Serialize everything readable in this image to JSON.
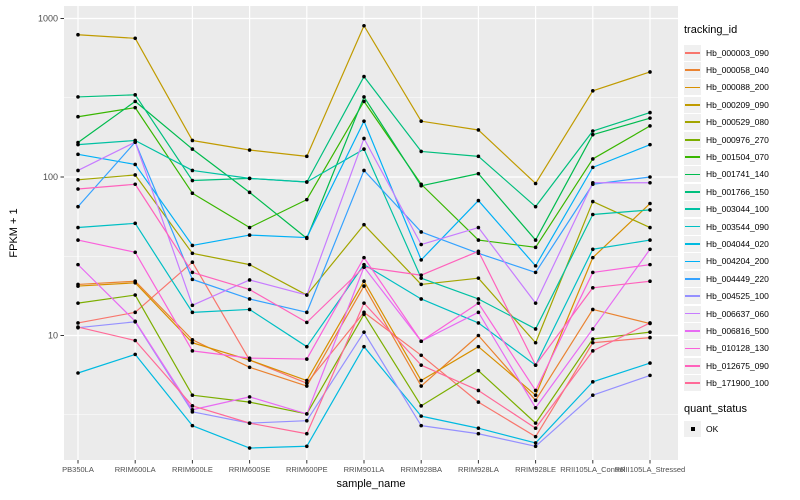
{
  "panel": {
    "bg": "#EBEBEB",
    "grid_color": "#FFFFFF",
    "tick_color": "#333333",
    "axis_text_color": "#4D4D4D",
    "point_color": "#000000"
  },
  "legend": {
    "color_title": "tracking_id",
    "shape_title": "quant_status",
    "shape_items": [
      {
        "label": "OK",
        "marker": "black-square"
      }
    ]
  },
  "chart_data": {
    "type": "line",
    "title": "",
    "xlabel": "sample_name",
    "ylabel": "FPKM + 1",
    "y_scale": "log10",
    "y_ticks": [
      10,
      100,
      1000
    ],
    "y_minor": [
      3.162,
      31.62,
      316.2
    ],
    "ylim": [
      1.6,
      1150
    ],
    "grid": true,
    "legend_position": "right",
    "x_categories": [
      "PB350LA",
      "RRIM600LA",
      "RRIM600LE",
      "RRIM600SE",
      "RRIM600PE",
      "RRIM901LA",
      "RRIM928BA",
      "RRIM928LA",
      "RRIM928LE",
      "RRII105LA_Control",
      "RRII105LA_Stressed"
    ],
    "series": [
      {
        "name": "Hb_000003_090",
        "color": "#F8766D",
        "values": [
          12,
          14,
          29,
          7,
          5,
          14,
          7.5,
          3.8,
          2.3,
          9,
          9.7
        ]
      },
      {
        "name": "Hb_000058_040",
        "color": "#EA8331",
        "values": [
          21,
          22,
          9.4,
          6.3,
          4.8,
          20.5,
          4.8,
          10,
          3.9,
          14.6,
          11.9
        ]
      },
      {
        "name": "Hb_000088_200",
        "color": "#D89000",
        "values": [
          20.5,
          21.5,
          9,
          7,
          5.2,
          22,
          5.2,
          8.5,
          4.2,
          31,
          68
        ]
      },
      {
        "name": "Hb_000209_090",
        "color": "#C09B00",
        "values": [
          790,
          750,
          170,
          148,
          135,
          900,
          225,
          198,
          91,
          350,
          460
        ]
      },
      {
        "name": "Hb_000529_080",
        "color": "#A3A500",
        "values": [
          96,
          103,
          33,
          28,
          18,
          50,
          21,
          23,
          9,
          70,
          48
        ]
      },
      {
        "name": "Hb_000976_270",
        "color": "#7CAE00",
        "values": [
          16,
          18,
          4.2,
          3.8,
          3.2,
          13.6,
          3.6,
          6,
          2.8,
          9.5,
          10.5
        ]
      },
      {
        "name": "Hb_001504_070",
        "color": "#39B600",
        "values": [
          240,
          274,
          79,
          48,
          72,
          300,
          90,
          40,
          36,
          130,
          210
        ]
      },
      {
        "name": "Hb_001741_140",
        "color": "#00BB4E",
        "values": [
          165,
          300,
          150,
          80,
          41,
          320,
          88,
          105,
          40,
          185,
          235
        ]
      },
      {
        "name": "Hb_001766_150",
        "color": "#00BF7D",
        "values": [
          320,
          330,
          95,
          98,
          93,
          430,
          145,
          135,
          65,
          195,
          255
        ]
      },
      {
        "name": "Hb_003044_100",
        "color": "#00C1A3",
        "values": [
          160,
          170,
          110,
          98,
          93,
          150,
          23,
          17,
          11,
          58,
          62
        ]
      },
      {
        "name": "Hb_003544_090",
        "color": "#00BFC4",
        "values": [
          48,
          51,
          14,
          14.6,
          8.5,
          28,
          17,
          12,
          6.5,
          35,
          40
        ]
      },
      {
        "name": "Hb_004044_020",
        "color": "#00BAE0",
        "values": [
          5.8,
          7.6,
          2.7,
          1.95,
          2,
          8.5,
          3.1,
          2.6,
          2.1,
          5.1,
          6.7
        ]
      },
      {
        "name": "Hb_004204_200",
        "color": "#00B0F6",
        "values": [
          139,
          120,
          37,
          43,
          41.5,
          225,
          30,
          71,
          27.5,
          115,
          160
        ]
      },
      {
        "name": "Hb_004449_220",
        "color": "#35A2FF",
        "values": [
          65,
          166,
          22.6,
          17,
          14,
          110,
          45,
          33,
          25,
          90,
          100
        ]
      },
      {
        "name": "Hb_004525_100",
        "color": "#9590FF",
        "values": [
          11.2,
          12.2,
          3.3,
          2.8,
          2.9,
          10.5,
          2.7,
          2.4,
          2,
          4.2,
          5.6
        ]
      },
      {
        "name": "Hb_006637_060",
        "color": "#C77CFF",
        "values": [
          110,
          166,
          15.5,
          22.4,
          18,
          175,
          37.5,
          48,
          16,
          92,
          92
        ]
      },
      {
        "name": "Hb_006816_500",
        "color": "#E76BF3",
        "values": [
          28,
          12.3,
          3.4,
          4.1,
          3.2,
          27,
          9.2,
          14,
          3.5,
          11,
          35
        ]
      },
      {
        "name": "Hb_010128_130",
        "color": "#FA62DB",
        "values": [
          40,
          33.5,
          8,
          7.2,
          7.1,
          31,
          9.2,
          16,
          4.5,
          25,
          28
        ]
      },
      {
        "name": "Hb_012675_090",
        "color": "#FF62BC",
        "values": [
          84,
          90,
          25,
          19.5,
          12.1,
          27,
          24,
          34,
          6.5,
          20,
          22
        ]
      },
      {
        "name": "Hb_171900_100",
        "color": "#FF6A98",
        "values": [
          11.3,
          9.3,
          3.6,
          2.8,
          2.4,
          16,
          6.5,
          4.5,
          2.6,
          8,
          12
        ]
      }
    ]
  }
}
